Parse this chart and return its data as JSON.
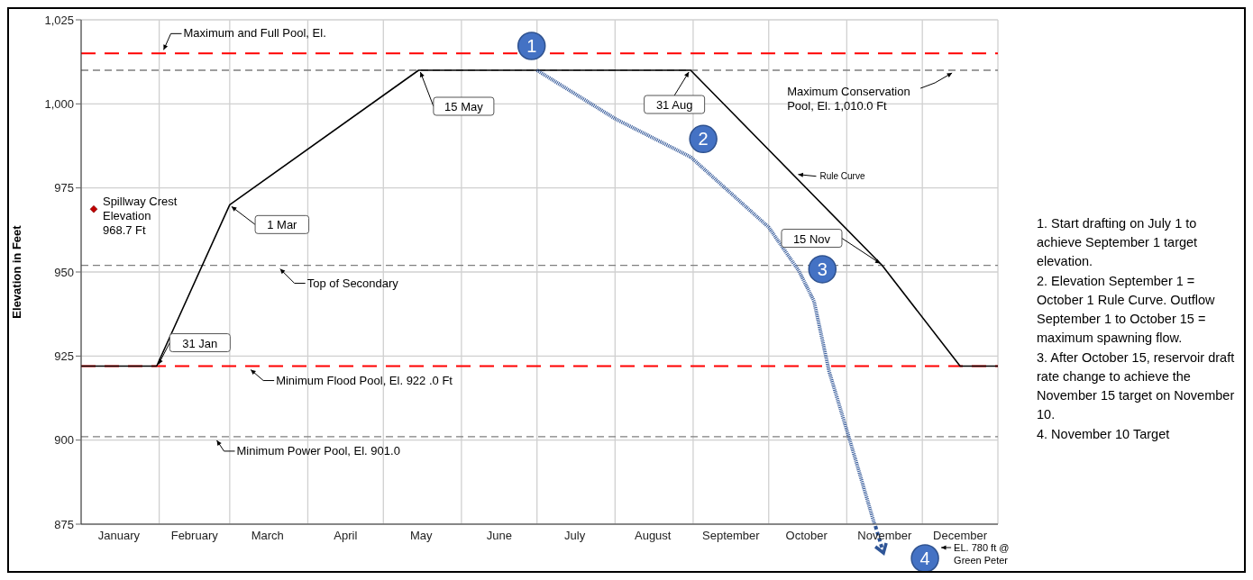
{
  "chart_data": {
    "type": "line",
    "ylabel": "Elevation in Feet",
    "xlim": [
      "--01-01",
      "--12-31"
    ],
    "xticks": [
      {
        "value": "--01-01",
        "label": null
      },
      {
        "value": "--01-16",
        "label": "January"
      },
      {
        "value": "--02-01",
        "label": null
      },
      {
        "value": "--02-15",
        "label": "February"
      },
      {
        "value": "--03-01",
        "label": null
      },
      {
        "value": "--03-16",
        "label": "March"
      },
      {
        "value": "--04-01",
        "label": null
      },
      {
        "value": "--04-16",
        "label": "April"
      },
      {
        "value": "--05-01",
        "label": null
      },
      {
        "value": "--05-16",
        "label": "May"
      },
      {
        "value": "--06-01",
        "label": null
      },
      {
        "value": "--06-16",
        "label": "June"
      },
      {
        "value": "--07-01",
        "label": null
      },
      {
        "value": "--07-16",
        "label": "July"
      },
      {
        "value": "--08-01",
        "label": null
      },
      {
        "value": "--08-16",
        "label": "August"
      },
      {
        "value": "--09-01",
        "label": null
      },
      {
        "value": "--09-16",
        "label": "September"
      },
      {
        "value": "--10-01",
        "label": null
      },
      {
        "value": "--10-16",
        "label": "October"
      },
      {
        "value": "--11-01",
        "label": null
      },
      {
        "value": "--11-16",
        "label": "November"
      },
      {
        "value": "--12-01",
        "label": null
      },
      {
        "value": "--12-16",
        "label": "December"
      },
      {
        "value": "--12-31",
        "label": null
      }
    ],
    "ylim": [
      875,
      1025
    ],
    "yticks": [
      875,
      900,
      925,
      950,
      975,
      {
        "value": 1000,
        "label": "1,000"
      },
      {
        "value": 1025,
        "label": "1,025"
      }
    ],
    "grid": true,
    "marker": "none",
    "series": [
      {
        "color": "#000000",
        "line_style": "solid",
        "x": [
          "--01-01",
          "--01-31",
          "--03-01",
          "--05-15",
          "--08-31",
          "--11-15",
          "--12-16",
          "--12-31"
        ],
        "values": [
          922,
          922,
          970,
          1010,
          1010,
          952,
          922,
          922
        ]
      },
      {
        "color": "#2f5597",
        "line_style": "dotted",
        "x": [
          "--07-01",
          "--08-01",
          "--08-31",
          "--10-01",
          "--10-13",
          "--10-19",
          "--10-25",
          "--11-02",
          "--11-12"
        ],
        "values": [
          1010,
          995.6,
          984.2,
          963.3,
          950.3,
          941.3,
          920.4,
          900.5,
          875
        ]
      },
      {
        "type": "scatter",
        "color": "#c00000",
        "marker": "diamond",
        "x": [
          "--01-06"
        ],
        "values": [
          968.7
        ]
      }
    ],
    "ref_lines": [
      {
        "axis": "y",
        "value": 1015,
        "label": "Maximum and Full Pool, El.",
        "color": "#ff0000",
        "line_style": "dashed"
      },
      {
        "axis": "y",
        "value": 1010,
        "label": "Maximum Conservation Pool, El. 1,010.0 Ft",
        "color": "#7f7f7f",
        "line_style": "dashed"
      },
      {
        "axis": "y",
        "value": 952,
        "label": "Top of Secondary",
        "color": "#7f7f7f",
        "line_style": "dashed"
      },
      {
        "axis": "y",
        "value": 922,
        "label": "Minimum Flood Pool, El. 922 .0 Ft",
        "color": "#ff0000",
        "line_style": "dashed"
      },
      {
        "axis": "y",
        "value": 901,
        "label": "Minimum Power Pool, El. 901.0",
        "color": "#7f7f7f",
        "line_style": "dashed"
      }
    ],
    "annotations": [
      {
        "text": "31 Jan",
        "x": "--01-31",
        "y": 922
      },
      {
        "text": "1 Mar",
        "x": "--03-01",
        "y": 970
      },
      {
        "text": "15 May",
        "x": "--05-15",
        "y": 1010
      },
      {
        "text": "31 Aug",
        "x": "--08-31",
        "y": 1010
      },
      {
        "text": "15 Nov",
        "x": "--11-15",
        "y": 952
      },
      {
        "text": "Rule Curve",
        "x": "--10-12",
        "y": 979
      },
      {
        "text": "Spillway Crest Elevation 968.7 Ft",
        "x": "--01-06",
        "y": 968.7
      },
      {
        "text": "1",
        "x": "--07-01",
        "y": 1010
      },
      {
        "text": "2",
        "x": "--08-31",
        "y": 984.2
      },
      {
        "text": "3",
        "x": "--10-13",
        "y": 950.3
      },
      "4",
      "EL. 780 ft @ Green Peter",
      "1. Start drafting on July 1 to achieve September 1 target elevation.",
      "2. Elevation September 1 = October 1 Rule Curve. Outflow September 1 to October 15 = maximum spawning flow.",
      "3. After October 15, reservoir draft rate change to achieve the November 15 target on November 10.",
      "4. November 10 Target"
    ]
  }
}
